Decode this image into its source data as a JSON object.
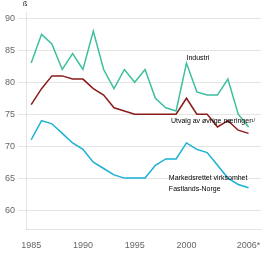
{
  "chart_data": {
    "type": "line",
    "x": [
      1985,
      1986,
      1987,
      1988,
      1989,
      1990,
      1991,
      1992,
      1993,
      1994,
      1995,
      1996,
      1997,
      1998,
      1999,
      2000,
      2001,
      2002,
      2003,
      2004,
      2005,
      2006
    ],
    "series": [
      {
        "color": "#3dbf9f",
        "values": [
          83,
          87.5,
          86,
          82,
          84.5,
          82,
          88,
          82,
          79,
          82,
          80,
          82,
          77.5,
          76,
          75.5,
          83,
          78.5,
          78,
          78,
          80.5,
          75,
          73
        ]
      },
      {
        "color": "#8b1a1a",
        "values": [
          76.5,
          79,
          81,
          81,
          80.5,
          80.5,
          79,
          78,
          76,
          75.5,
          75,
          75,
          75,
          75,
          75,
          77.5,
          75,
          75,
          73,
          74,
          72.5,
          72
        ]
      },
      {
        "color": "#1ab0d4",
        "values": [
          71,
          74,
          73.5,
          72,
          70.5,
          69.5,
          67.5,
          66.5,
          65.5,
          65,
          65,
          65,
          67,
          68,
          68,
          70.5,
          69.5,
          69,
          67,
          65,
          64,
          63.5
        ]
      }
    ],
    "xlim": [
      1984.5,
      2007.2
    ],
    "xticks": [
      1985,
      1990,
      1995,
      2000,
      {
        "value": 2006,
        "label": "2006*"
      }
    ],
    "ylim": [
      57,
      91
    ],
    "yticks": [
      60,
      65,
      70,
      75,
      80,
      85,
      90
    ],
    "grid": true,
    "annotations": [
      {
        "text": "Industri",
        "x": 2000.0,
        "y": 83.8
      },
      {
        "text": "Utvalg av øvrige næringer¹⁾",
        "x": 1998.5,
        "y": 74.0
      },
      {
        "text": "Markedsrettet virksomhet",
        "x": 1998.3,
        "y": 65.5
      },
      {
        "text": "Fastlands-Norge",
        "x": 1998.3,
        "y": 63.8
      },
      {
        "text": "ß"
      }
    ]
  }
}
